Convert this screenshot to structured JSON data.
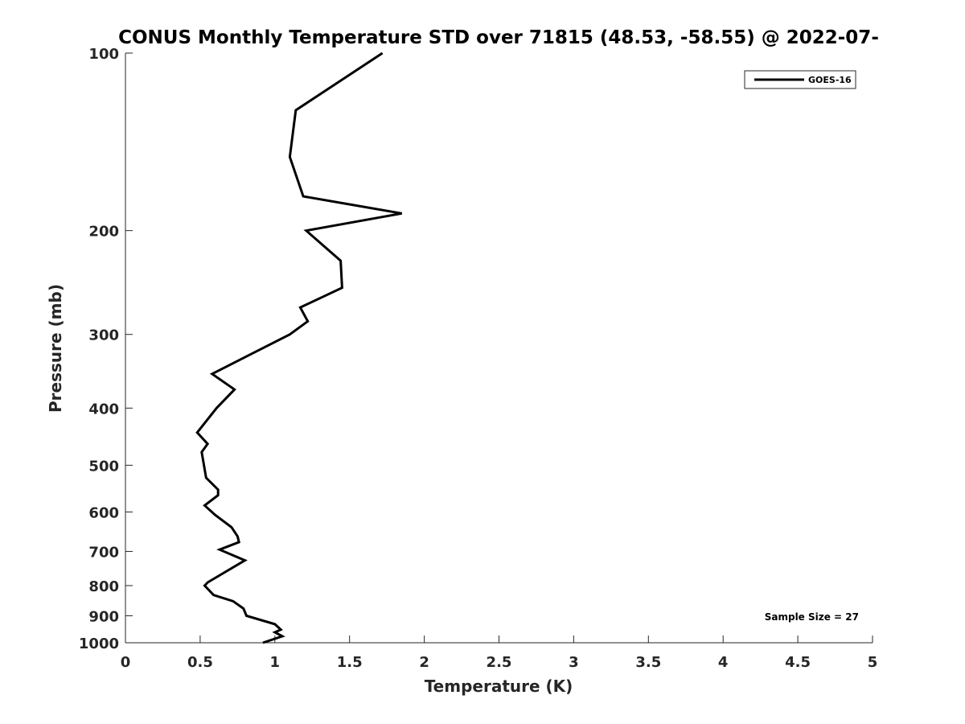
{
  "chart_data": {
    "type": "line",
    "title": "CONUS Monthly Temperature STD over 71815 (48.53, -58.55) @ 2022-07-",
    "xlabel": "Temperature (K)",
    "ylabel": "Pressure (mb)",
    "xlim": [
      0,
      5
    ],
    "ylim": [
      100,
      1000
    ],
    "y_scale": "log",
    "y_reversed": true,
    "grid": false,
    "legend_position": "top-right",
    "x_ticks": [
      "0",
      "0.5",
      "1",
      "1.5",
      "2",
      "2.5",
      "3",
      "3.5",
      "4",
      "4.5",
      "5"
    ],
    "y_ticks": [
      "100",
      "200",
      "300",
      "400",
      "500",
      "600",
      "700",
      "800",
      "900",
      "1000"
    ],
    "series": [
      {
        "name": "GOES-16",
        "color": "#000000",
        "points": [
          [
            1.72,
            100
          ],
          [
            1.14,
            125
          ],
          [
            1.1,
            150
          ],
          [
            1.19,
            175
          ],
          [
            1.85,
            187
          ],
          [
            1.21,
            200
          ],
          [
            1.44,
            225
          ],
          [
            1.45,
            250
          ],
          [
            1.17,
            270
          ],
          [
            1.22,
            285
          ],
          [
            1.1,
            300
          ],
          [
            0.83,
            325
          ],
          [
            0.58,
            350
          ],
          [
            0.73,
            372
          ],
          [
            0.61,
            400
          ],
          [
            0.48,
            440
          ],
          [
            0.55,
            460
          ],
          [
            0.51,
            475
          ],
          [
            0.54,
            525
          ],
          [
            0.62,
            550
          ],
          [
            0.62,
            562
          ],
          [
            0.53,
            585
          ],
          [
            0.6,
            607
          ],
          [
            0.71,
            637
          ],
          [
            0.75,
            660
          ],
          [
            0.76,
            675
          ],
          [
            0.63,
            695
          ],
          [
            0.8,
            725
          ],
          [
            0.55,
            790
          ],
          [
            0.53,
            800
          ],
          [
            0.59,
            830
          ],
          [
            0.72,
            850
          ],
          [
            0.79,
            875
          ],
          [
            0.81,
            900
          ],
          [
            1.0,
            930
          ],
          [
            1.04,
            950
          ],
          [
            1.0,
            960
          ],
          [
            1.05,
            975
          ],
          [
            0.92,
            1000
          ]
        ]
      }
    ],
    "annotation": "Sample Size = 27"
  }
}
